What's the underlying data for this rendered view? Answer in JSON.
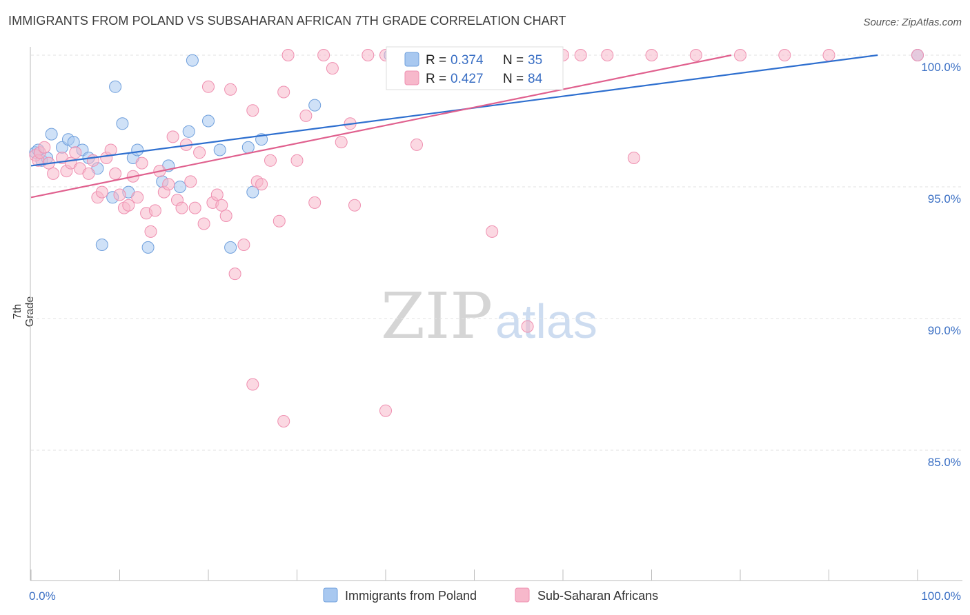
{
  "header": {
    "title": "IMMIGRANTS FROM POLAND VS SUBSAHARAN AFRICAN 7TH GRADE CORRELATION CHART",
    "source": "Source: ZipAtlas.com"
  },
  "watermark": {
    "zip": "ZIP",
    "atlas": "atlas"
  },
  "chart_data": {
    "type": "scatter",
    "title": "IMMIGRANTS FROM POLAND VS SUBSAHARAN AFRICAN 7TH GRADE CORRELATION CHART",
    "xlabel": "",
    "ylabel": "7th Grade",
    "xlim": [
      0,
      100
    ],
    "ylim": [
      80.2,
      100.7
    ],
    "x_tick_labels": [
      {
        "value": 0,
        "label": "0.0%"
      },
      {
        "value": 100,
        "label": "100.0%"
      }
    ],
    "y_ticks": [
      {
        "value": 100,
        "label": "100.0%"
      },
      {
        "value": 95,
        "label": "95.0%"
      },
      {
        "value": 90,
        "label": "90.0%"
      },
      {
        "value": 85,
        "label": "85.0%"
      }
    ],
    "grid": true,
    "legend_position": "bottom-center",
    "stats_box_position": "top-center",
    "series": [
      {
        "name": "Immigrants from Poland",
        "color": "#a8c8f0",
        "edge_color": "#6f9fdc",
        "line_color": "#2e6fcf",
        "R": "0.374",
        "N": "35",
        "trend": {
          "x0": 0,
          "y0": 95.8,
          "x1": 95.5,
          "y1": 100
        },
        "x": [
          0.5,
          0.8,
          1.2,
          1.8,
          2.3,
          3.5,
          4.2,
          4.8,
          5.8,
          6.5,
          7.5,
          8.0,
          9.2,
          9.5,
          10.3,
          11.5,
          12.0,
          13.2,
          14.8,
          15.5,
          16.8,
          17.8,
          18.2,
          20.0,
          21.3,
          22.5,
          24.5,
          25.0,
          26.0,
          32.0,
          40.5,
          41.5,
          43.0,
          100.0,
          11.0
        ],
        "y": [
          96.3,
          96.4,
          96.0,
          96.1,
          97.0,
          96.5,
          96.8,
          96.7,
          96.4,
          96.1,
          95.7,
          92.8,
          94.6,
          98.8,
          97.4,
          96.1,
          96.4,
          92.7,
          95.2,
          95.8,
          95.0,
          97.1,
          99.8,
          97.5,
          96.4,
          92.7,
          96.5,
          94.8,
          96.8,
          98.1,
          100.0,
          100.0,
          100.0,
          100.0,
          94.8
        ]
      },
      {
        "name": "Sub-Saharan Africans",
        "color": "#f7b8cb",
        "edge_color": "#ef8fb0",
        "line_color": "#e0608e",
        "R": "0.427",
        "N": "84",
        "trend": {
          "x0": 0,
          "y0": 94.6,
          "x1": 79.0,
          "y1": 100
        },
        "x": [
          0.5,
          0.8,
          1.0,
          1.5,
          2.0,
          2.5,
          3.5,
          4.0,
          4.5,
          5.0,
          5.5,
          6.5,
          7.0,
          7.5,
          8.0,
          8.5,
          9.0,
          9.5,
          10.0,
          10.5,
          11.0,
          11.5,
          12.0,
          12.5,
          13.0,
          13.5,
          14.0,
          14.5,
          15.0,
          15.5,
          16.0,
          16.5,
          17.0,
          17.5,
          18.0,
          18.5,
          19.0,
          19.5,
          20.0,
          20.5,
          21.0,
          21.5,
          22.0,
          22.5,
          23.0,
          24.0,
          25.0,
          25.5,
          26.0,
          27.0,
          28.0,
          28.5,
          29.0,
          30.0,
          31.0,
          32.0,
          33.0,
          34.0,
          35.0,
          36.5,
          38.0,
          40.0,
          42.0,
          44.0,
          46.0,
          48.0,
          52.0,
          56.0,
          58.0,
          60.0,
          62.0,
          65.0,
          68.0,
          70.0,
          75.0,
          80.0,
          85.0,
          90.0,
          100.0,
          36.0,
          25.0,
          28.5,
          40.0,
          43.5
        ],
        "y": [
          96.2,
          96.0,
          96.3,
          96.5,
          95.9,
          95.5,
          96.1,
          95.6,
          95.9,
          96.3,
          95.7,
          95.5,
          96.0,
          94.6,
          94.8,
          96.1,
          96.4,
          95.5,
          94.7,
          94.2,
          94.3,
          95.4,
          94.6,
          95.9,
          94.0,
          93.3,
          94.1,
          95.6,
          94.8,
          95.1,
          96.9,
          94.5,
          94.2,
          96.6,
          95.2,
          94.2,
          96.3,
          93.6,
          98.8,
          94.4,
          94.7,
          94.3,
          93.9,
          98.7,
          91.7,
          92.8,
          97.9,
          95.2,
          95.1,
          96.0,
          93.7,
          98.6,
          100.0,
          96.0,
          97.7,
          94.4,
          100.0,
          99.5,
          96.7,
          94.3,
          100.0,
          100.0,
          100.0,
          100.0,
          100.0,
          100.0,
          93.3,
          89.7,
          100.0,
          100.0,
          100.0,
          100.0,
          96.1,
          100.0,
          100.0,
          100.0,
          100.0,
          100.0,
          100.0,
          97.4,
          87.5,
          86.1,
          86.5,
          96.6
        ]
      }
    ]
  }
}
